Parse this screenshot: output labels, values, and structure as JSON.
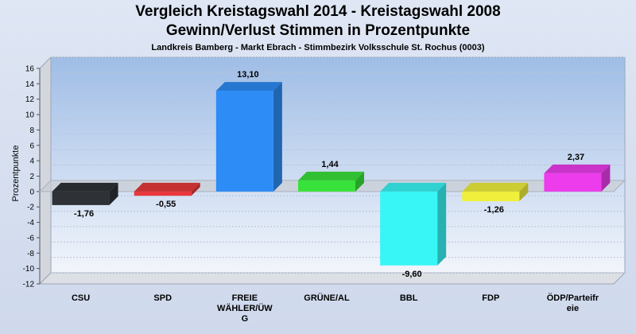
{
  "header": {
    "title_line1": "Vergleich Kreistagswahl 2014 - Kreistagswahl 2008",
    "title_line2": "Gewinn/Verlust Stimmen in Prozentpunkte",
    "subtitle": "Landkreis Bamberg - Markt Ebrach - Stimmbezirk Volksschule St. Rochus (0003)"
  },
  "chart_data": {
    "type": "bar",
    "title": "Vergleich Kreistagswahl 2014 - Kreistagswahl 2008",
    "subtitle": "Gewinn/Verlust Stimmen in Prozentpunkte",
    "ylabel": "Prozentpunkte",
    "xlabel": "",
    "ylim": [
      -12,
      16
    ],
    "yticks": [
      16,
      14,
      12,
      10,
      8,
      6,
      4,
      2,
      0,
      -2,
      -4,
      -6,
      -8,
      -10,
      -12
    ],
    "grid": true,
    "categories": [
      [
        "CSU"
      ],
      [
        "SPD"
      ],
      [
        "FREIE",
        "WÄHLER/ÜW",
        "G"
      ],
      [
        "GRÜNE/AL"
      ],
      [
        "BBL"
      ],
      [
        "FDP"
      ],
      [
        "ÖDP/Parteifr",
        "eie"
      ]
    ],
    "values": [
      -1.76,
      -0.55,
      13.1,
      1.44,
      -9.6,
      -1.26,
      2.37
    ],
    "value_labels": [
      "-1,76",
      "-0,55",
      "13,10",
      "1,44",
      "-9,60",
      "-1,26",
      "2,37"
    ],
    "colors": [
      "#2e3236",
      "#e8383c",
      "#2d8cf5",
      "#38e23a",
      "#38f6f6",
      "#f0f03c",
      "#ec3cec"
    ]
  }
}
